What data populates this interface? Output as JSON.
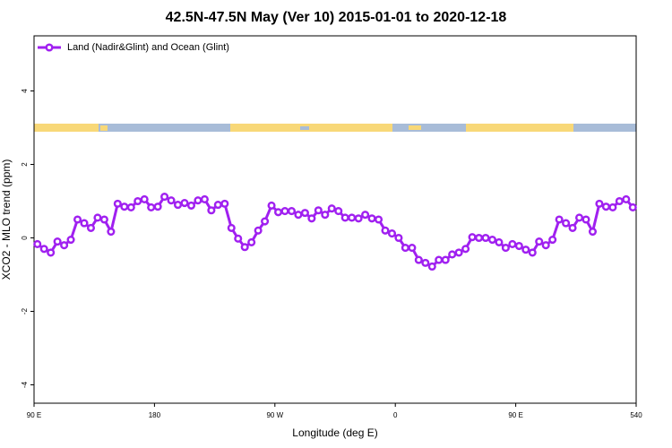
{
  "chart_data": {
    "type": "line",
    "title": "42.5N-47.5N May (Ver 10)   2015-01-01 to 2020-12-18",
    "x_label": "Longitude (deg E)",
    "y_label": "XCO2 - MLO trend (ppm)",
    "x": [
      92.5,
      97.5,
      102.5,
      107.5,
      112.5,
      117.5,
      122.5,
      127.5,
      132.5,
      137.5,
      142.5,
      147.5,
      152.5,
      157.5,
      162.5,
      167.5,
      172.5,
      177.5,
      182.5,
      187.5,
      192.5,
      197.5,
      202.5,
      207.5,
      212.5,
      217.5,
      222.5,
      227.5,
      232.5,
      237.5,
      242.5,
      247.5,
      252.5,
      257.5,
      262.5,
      267.5,
      272.5,
      277.5,
      282.5,
      287.5,
      292.5,
      297.5,
      302.5,
      307.5,
      312.5,
      317.5,
      322.5,
      327.5,
      332.5,
      337.5,
      342.5,
      347.5,
      352.5,
      357.5,
      362.5,
      367.5,
      372.5,
      377.5,
      382.5,
      387.5,
      392.5,
      397.5,
      402.5,
      407.5,
      412.5,
      417.5,
      422.5,
      427.5,
      432.5,
      437.5,
      442.5,
      447.5,
      452.5,
      457.5,
      462.5,
      467.5,
      472.5,
      477.5,
      482.5,
      487.5,
      492.5,
      497.5,
      502.5,
      507.5,
      512.5,
      517.5,
      522.5,
      527.5,
      532.5,
      537.5
    ],
    "series": [
      {
        "name": "Land (Nadir&Glint) and Ocean (Glint)",
        "color": "#a020f0",
        "values": [
          -0.17,
          -0.3,
          -0.4,
          -0.1,
          -0.2,
          -0.05,
          0.5,
          0.4,
          0.27,
          0.55,
          0.5,
          0.17,
          0.93,
          0.85,
          0.83,
          1.0,
          1.05,
          0.83,
          0.85,
          1.12,
          1.02,
          0.9,
          0.95,
          0.88,
          1.02,
          1.05,
          0.75,
          0.9,
          0.93,
          0.27,
          -0.02,
          -0.25,
          -0.12,
          0.2,
          0.45,
          0.88,
          0.7,
          0.73,
          0.73,
          0.63,
          0.68,
          0.53,
          0.75,
          0.63,
          0.8,
          0.73,
          0.55,
          0.55,
          0.53,
          0.63,
          0.53,
          0.5,
          0.2,
          0.12,
          0,
          -0.27,
          -0.27,
          -0.6,
          -0.68,
          -0.78,
          -0.6,
          -0.6,
          -0.45,
          -0.4,
          -0.3,
          0.02,
          0,
          0,
          -0.05,
          -0.12,
          -0.27,
          -0.17,
          -0.22,
          -0.32,
          -0.4,
          -0.1,
          -0.2,
          -0.05,
          0.5,
          0.4,
          0.27,
          0.55,
          0.5,
          0.17,
          0.93,
          0.85,
          0.83,
          1.0,
          1.05,
          0.83
        ]
      }
    ],
    "xlim": [
      90,
      540
    ],
    "xticks": [
      {
        "value": 90,
        "label": "90 E"
      },
      180,
      {
        "value": 270,
        "label": "90 W"
      },
      {
        "value": 360,
        "label": "0"
      },
      {
        "value": 450,
        "label": "90 E"
      },
      540
    ],
    "ylim": [
      -4.5,
      5.5
    ],
    "yticks": [
      -4,
      -2,
      0,
      2,
      4
    ],
    "legend": "top-left"
  }
}
